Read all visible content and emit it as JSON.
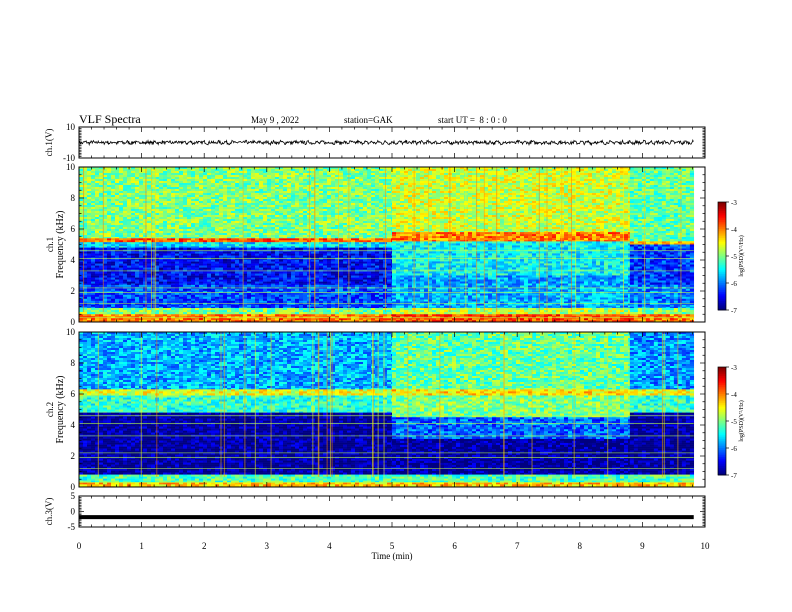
{
  "header": {
    "title": "VLF Spectra",
    "date": "May 9 , 2022",
    "station": "station=GAK",
    "start": "start UT =  8 : 0 : 0"
  },
  "chart_data": [
    {
      "type": "line",
      "panel": "ch1-waveform",
      "ylabel": "ch.1(V)",
      "ylim": [
        -10,
        10
      ],
      "yticks": [
        "10",
        "-10"
      ],
      "xlim": [
        0,
        10
      ],
      "series": [
        {
          "style": "noisy waveform",
          "mean_V": 0,
          "amplitude_V": 1.5,
          "x_end": 9.82
        }
      ]
    },
    {
      "type": "heatmap",
      "panel": "ch1-spectrogram",
      "ylabel": "ch.1 Frequency (kHz)",
      "ylim": [
        0,
        10
      ],
      "yticks": [
        "0",
        "2",
        "4",
        "6",
        "8",
        "10"
      ],
      "xlim": [
        0,
        10
      ],
      "colorbar": {
        "label": "log(PSD)(V²/Hz)",
        "range": [
          -7,
          -3
        ],
        "ticks": [
          "-3",
          "-4",
          "-5",
          "-6",
          "-7"
        ]
      },
      "segments": [
        {
          "t": [
            0,
            5
          ],
          "bands": [
            {
              "f": [
                5.4,
                10
              ],
              "v": -5.0
            },
            {
              "f": [
                5.15,
                5.4
              ],
              "v": -3.9
            },
            {
              "f": [
                4.8,
                5.15
              ],
              "v": -5.6
            },
            {
              "f": [
                2.4,
                4.8
              ],
              "v": -6.5
            },
            {
              "f": [
                0.9,
                2.4
              ],
              "v": -6.2
            },
            {
              "f": [
                0.5,
                0.9
              ],
              "v": -5.0
            },
            {
              "f": [
                0,
                0.5
              ],
              "v": -4.0
            }
          ]
        },
        {
          "t": [
            5,
            8.8
          ],
          "bands": [
            {
              "f": [
                5.8,
                10
              ],
              "v": -4.7
            },
            {
              "f": [
                5.2,
                5.8
              ],
              "v": -4.0
            },
            {
              "f": [
                3.0,
                5.2
              ],
              "v": -5.5
            },
            {
              "f": [
                0.9,
                3.0
              ],
              "v": -5.8
            },
            {
              "f": [
                0.5,
                0.9
              ],
              "v": -4.8
            },
            {
              "f": [
                0,
                0.5
              ],
              "v": -3.8
            }
          ]
        },
        {
          "t": [
            8.8,
            9.82
          ],
          "bands": [
            {
              "f": [
                5.2,
                10
              ],
              "v": -5.1
            },
            {
              "f": [
                5.0,
                5.2
              ],
              "v": -4.2
            },
            {
              "f": [
                2.4,
                5.0
              ],
              "v": -6.3
            },
            {
              "f": [
                0.9,
                2.4
              ],
              "v": -6.0
            },
            {
              "f": [
                0.5,
                0.9
              ],
              "v": -5.0
            },
            {
              "f": [
                0,
                0.5
              ],
              "v": -4.0
            }
          ]
        }
      ]
    },
    {
      "type": "heatmap",
      "panel": "ch2-spectrogram",
      "ylabel": "ch.2 Frequency (kHz)",
      "ylim": [
        0,
        10
      ],
      "yticks": [
        "0",
        "2",
        "4",
        "6",
        "8",
        "10"
      ],
      "xlim": [
        0,
        10
      ],
      "colorbar": {
        "label": "log(PSD)(V²/Hz)",
        "range": [
          -7,
          -3
        ],
        "ticks": [
          "-3",
          "-4",
          "-5",
          "-6",
          "-7"
        ]
      },
      "segments": [
        {
          "t": [
            0,
            5
          ],
          "bands": [
            {
              "f": [
                6.3,
                10
              ],
              "v": -5.8
            },
            {
              "f": [
                5.9,
                6.3
              ],
              "v": -4.6
            },
            {
              "f": [
                4.8,
                5.9
              ],
              "v": -5.3
            },
            {
              "f": [
                0.8,
                4.8
              ],
              "v": -6.9
            },
            {
              "f": [
                0.3,
                0.8
              ],
              "v": -5.2
            },
            {
              "f": [
                0,
                0.3
              ],
              "v": -4.3
            }
          ]
        },
        {
          "t": [
            5,
            8.8
          ],
          "bands": [
            {
              "f": [
                6.3,
                10
              ],
              "v": -5.1
            },
            {
              "f": [
                5.9,
                6.3
              ],
              "v": -4.4
            },
            {
              "f": [
                4.5,
                5.9
              ],
              "v": -5.0
            },
            {
              "f": [
                3.1,
                4.5
              ],
              "v": -6.1
            },
            {
              "f": [
                0.8,
                3.1
              ],
              "v": -6.9
            },
            {
              "f": [
                0.3,
                0.8
              ],
              "v": -5.2
            },
            {
              "f": [
                0,
                0.3
              ],
              "v": -4.3
            }
          ]
        },
        {
          "t": [
            8.8,
            9.82
          ],
          "bands": [
            {
              "f": [
                6.3,
                10
              ],
              "v": -5.9
            },
            {
              "f": [
                5.9,
                6.3
              ],
              "v": -4.6
            },
            {
              "f": [
                4.8,
                5.9
              ],
              "v": -5.3
            },
            {
              "f": [
                0.8,
                4.8
              ],
              "v": -6.9
            },
            {
              "f": [
                0.3,
                0.8
              ],
              "v": -5.2
            },
            {
              "f": [
                0,
                0.3
              ],
              "v": -4.3
            }
          ]
        }
      ]
    },
    {
      "type": "line",
      "panel": "ch3-waveform",
      "ylabel": "ch.3(V)",
      "ylim": [
        -5,
        5
      ],
      "yticks": [
        "5",
        "0",
        "-5"
      ],
      "xlim": [
        0,
        10
      ],
      "xlabel": "Time (min)",
      "xticks": [
        "0",
        "1",
        "2",
        "3",
        "4",
        "5",
        "6",
        "7",
        "8",
        "9",
        "10"
      ],
      "series": [
        {
          "style": "thick flat line",
          "value_V": -1.8,
          "x_end": 9.82
        }
      ]
    }
  ]
}
